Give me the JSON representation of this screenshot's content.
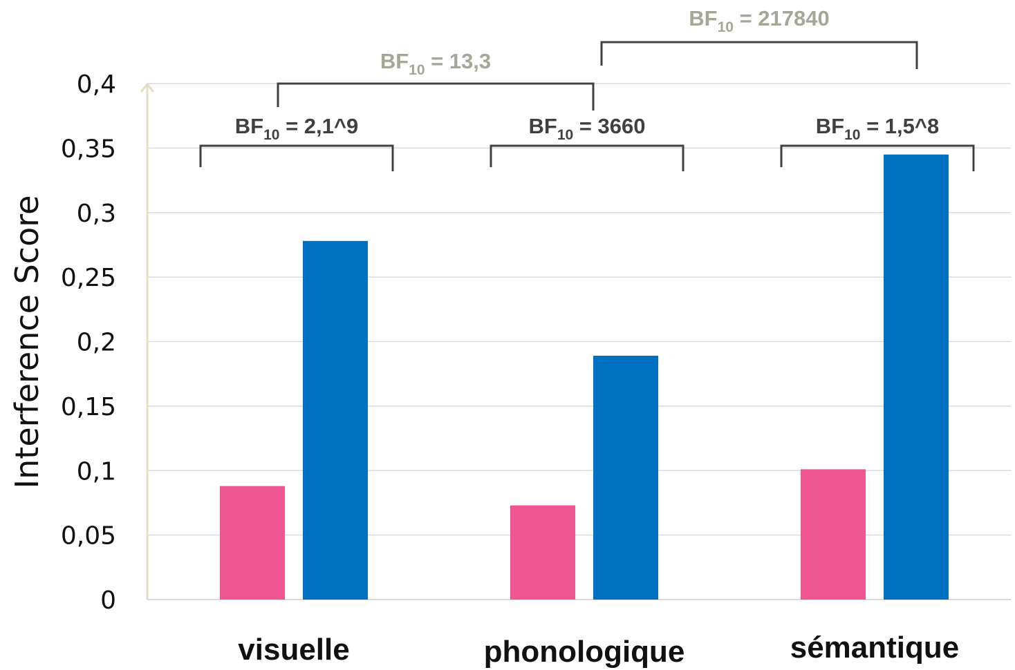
{
  "chart_data": {
    "type": "bar",
    "ylabel": "Interference Score",
    "ylim": [
      0,
      0.4
    ],
    "grid": true,
    "yticks": [
      {
        "value": 0,
        "label": "0"
      },
      {
        "value": 0.05,
        "label": "0,05"
      },
      {
        "value": 0.1,
        "label": "0,1"
      },
      {
        "value": 0.15,
        "label": "0,15"
      },
      {
        "value": 0.2,
        "label": "0,2"
      },
      {
        "value": 0.25,
        "label": "0,25"
      },
      {
        "value": 0.3,
        "label": "0,3"
      },
      {
        "value": 0.35,
        "label": "0,35"
      },
      {
        "value": 0.4,
        "label": "0,4"
      }
    ],
    "categories": [
      "visuelle",
      "phonologique",
      "sémantique"
    ],
    "series": [
      {
        "color": "#EF5591",
        "values": [
          0.088,
          0.073,
          0.101
        ]
      },
      {
        "color": "#0070C0",
        "values": [
          0.278,
          0.189,
          0.345
        ]
      }
    ],
    "annotations": [
      {
        "text_pre": "BF",
        "text_sub": "10",
        "text_post": " = 2,1^9",
        "color": "#404040",
        "type": "within",
        "category": 0
      },
      {
        "text_pre": "BF",
        "text_sub": "10",
        "text_post": " = 3660",
        "color": "#404040",
        "type": "within",
        "category": 1
      },
      {
        "text_pre": "BF",
        "text_sub": "10",
        "text_post": " = 1,5^8",
        "color": "#404040",
        "type": "within",
        "category": 2
      },
      {
        "text_pre": "BF",
        "text_sub": "10",
        "text_post": " = 13,3",
        "color": "#A6A697",
        "type": "between",
        "from": 0,
        "to": 1,
        "level": 1
      },
      {
        "text_pre": "BF",
        "text_sub": "10",
        "text_post": " = 217840",
        "color": "#A6A697",
        "type": "between",
        "from": 1,
        "to": 2,
        "level": 2
      }
    ],
    "colors": {
      "axis_line": "#E8DCC4",
      "grid": "#D9D9D9",
      "bracket": "#404040"
    }
  }
}
